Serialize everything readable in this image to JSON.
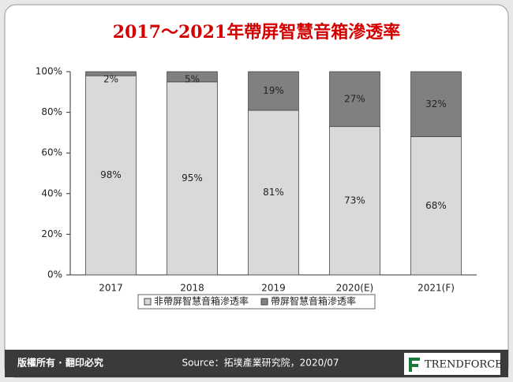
{
  "chart_data": {
    "type": "stacked_bar",
    "title": "2017～2021年帶屏智慧音箱滲透率",
    "categories": [
      "2017",
      "2018",
      "2019",
      "2020(E)",
      "2021(F)"
    ],
    "series": [
      {
        "name": "非帶屏智慧音箱滲透率",
        "color": "#d9d9d9",
        "values": [
          98,
          95,
          81,
          73,
          68
        ],
        "value_labels": [
          "98%",
          "95%",
          "81%",
          "73%",
          "68%"
        ]
      },
      {
        "name": "帶屏智慧音箱滲透率",
        "color": "#808080",
        "values": [
          2,
          5,
          19,
          27,
          32
        ],
        "value_labels": [
          "2%",
          "5%",
          "19%",
          "27%",
          "32%"
        ]
      }
    ],
    "ylim": [
      0,
      100
    ],
    "yticks": [
      {
        "value": 0,
        "label": "0%"
      },
      {
        "value": 20,
        "label": "20%"
      },
      {
        "value": 40,
        "label": "40%"
      },
      {
        "value": 60,
        "label": "60%"
      },
      {
        "value": 80,
        "label": "80%"
      },
      {
        "value": 100,
        "label": "100%"
      }
    ],
    "legend": "bottom"
  },
  "footer": {
    "copyright": "版權所有 · 翻印必究",
    "source": "Source：拓墣產業研究院，2020/07",
    "brand": "TRENDFORCE"
  }
}
